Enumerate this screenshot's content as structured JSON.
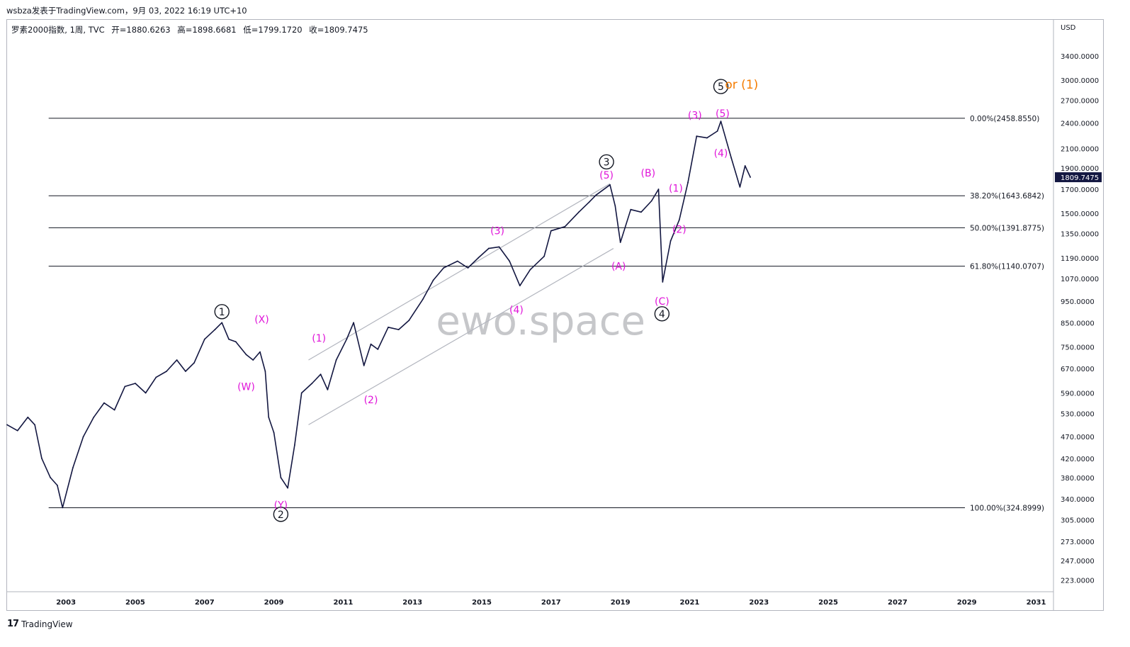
{
  "caption": "wsbza发表于TradingView.com，9月 03, 2022 16:19 UTC+10",
  "legend": {
    "symbol": "罗素2000指数, 1周, TVC",
    "open": "开=1880.6263",
    "high": "高=1898.6681",
    "low": "低=1799.1720",
    "close": "收=1809.7475"
  },
  "watermark": "ewo.space",
  "footer": "TradingView",
  "colors": {
    "price": "#131741",
    "magenta": "#e014d9",
    "orange": "#f57c00",
    "fib": "#131722",
    "channel": "#b2b5be"
  },
  "chart_data": {
    "type": "line",
    "currency": "USD",
    "y_scale": "log",
    "ylim": [
      210,
      4100
    ],
    "xlim": [
      2001.3,
      2031.5
    ],
    "x_ticks": [
      "2003",
      "2005",
      "2007",
      "2009",
      "2011",
      "2013",
      "2015",
      "2017",
      "2019",
      "2021",
      "2023",
      "2025",
      "2027",
      "2029",
      "2031"
    ],
    "y_ticks": [
      "3400.0000",
      "3000.0000",
      "2700.0000",
      "2400.0000",
      "2100.0000",
      "1900.0000",
      "1700.0000",
      "1500.0000",
      "1350.0000",
      "1190.0000",
      "1070.0000",
      "950.0000",
      "850.0000",
      "750.0000",
      "670.0000",
      "590.0000",
      "530.0000",
      "470.0000",
      "420.0000",
      "380.0000",
      "340.0000",
      "305.0000",
      "273.0000",
      "247.0000",
      "223.0000"
    ],
    "last_price_label": "1809.7475",
    "series": [
      {
        "x": [
          2001.3,
          2001.6,
          2001.9,
          2002.1,
          2002.3,
          2002.55,
          2002.75,
          2002.9,
          2003.2,
          2003.5,
          2003.8,
          2004.1,
          2004.4,
          2004.7,
          2005.0,
          2005.3,
          2005.6,
          2005.9,
          2006.2,
          2006.45,
          2006.7,
          2007.0,
          2007.3,
          2007.5,
          2007.7,
          2007.9,
          2008.2,
          2008.4,
          2008.6,
          2008.75,
          2008.85,
          2009.0,
          2009.2,
          2009.4,
          2009.6,
          2009.8,
          2010.1,
          2010.35,
          2010.55,
          2010.8,
          2011.1,
          2011.3,
          2011.6,
          2011.8,
          2012.0,
          2012.3,
          2012.6,
          2012.9,
          2013.3,
          2013.6,
          2013.9,
          2014.3,
          2014.6,
          2014.9,
          2015.2,
          2015.5,
          2015.8,
          2016.1,
          2016.4,
          2016.8,
          2017.0,
          2017.4,
          2017.8,
          2018.1,
          2018.3,
          2018.7,
          2018.85,
          2019.0,
          2019.3,
          2019.6,
          2019.9,
          2020.1,
          2020.22,
          2020.45,
          2020.7,
          2020.95,
          2021.2,
          2021.5,
          2021.8,
          2021.9,
          2022.2,
          2022.45,
          2022.6,
          2022.75
        ],
        "y": [
          500,
          485,
          520,
          500,
          420,
          380,
          365,
          325,
          400,
          470,
          520,
          560,
          540,
          610,
          620,
          590,
          640,
          660,
          700,
          660,
          690,
          780,
          820,
          850,
          780,
          770,
          720,
          700,
          730,
          660,
          520,
          480,
          380,
          360,
          450,
          590,
          620,
          650,
          600,
          700,
          780,
          850,
          680,
          760,
          740,
          830,
          820,
          860,
          960,
          1060,
          1130,
          1170,
          1130,
          1190,
          1250,
          1260,
          1170,
          1030,
          1120,
          1200,
          1370,
          1400,
          1510,
          1590,
          1650,
          1740,
          1560,
          1290,
          1530,
          1510,
          1600,
          1700,
          1050,
          1300,
          1450,
          1760,
          2240,
          2220,
          2300,
          2420,
          2000,
          1720,
          1920,
          1810
        ]
      }
    ],
    "fib_levels": [
      {
        "label": "0.00%(2458.8550)",
        "value": 2458.855
      },
      {
        "label": "38.20%(1643.6842)",
        "value": 1643.6842
      },
      {
        "label": "50.00%(1391.8775)",
        "value": 1391.8775
      },
      {
        "label": "61.80%(1140.0707)",
        "value": 1140.0707
      },
      {
        "label": "100.00%(324.8999)",
        "value": 324.8999
      }
    ],
    "channel": [
      {
        "x1": 2010.0,
        "y1": 700,
        "x2": 2018.7,
        "y2": 1750
      },
      {
        "x1": 2010.0,
        "y1": 500,
        "x2": 2018.8,
        "y2": 1250
      }
    ],
    "wave_labels": [
      {
        "text": "1",
        "circled": true,
        "color": "black",
        "x": 2007.5,
        "y": 900
      },
      {
        "text": "2",
        "circled": true,
        "color": "black",
        "x": 2009.2,
        "y": 314
      },
      {
        "text": "3",
        "circled": true,
        "color": "black",
        "x": 2018.6,
        "y": 1960
      },
      {
        "text": "4",
        "circled": true,
        "color": "black",
        "x": 2020.2,
        "y": 890
      },
      {
        "text": "5",
        "circled": true,
        "color": "black",
        "x": 2021.9,
        "y": 2900
      },
      {
        "text": "or (1)",
        "circled": false,
        "color": "orange",
        "x": 2022.5,
        "y": 2920
      },
      {
        "text": "(X)",
        "circled": false,
        "color": "magenta",
        "x": 2008.65,
        "y": 865
      },
      {
        "text": "(W)",
        "circled": false,
        "color": "magenta",
        "x": 2008.2,
        "y": 610
      },
      {
        "text": "(Y)",
        "circled": false,
        "color": "magenta",
        "x": 2009.2,
        "y": 330
      },
      {
        "text": "(1)",
        "circled": false,
        "color": "magenta",
        "x": 2010.3,
        "y": 785
      },
      {
        "text": "(2)",
        "circled": false,
        "color": "magenta",
        "x": 2011.8,
        "y": 570
      },
      {
        "text": "(3)",
        "circled": false,
        "color": "magenta",
        "x": 2015.45,
        "y": 1370
      },
      {
        "text": "(4)",
        "circled": false,
        "color": "magenta",
        "x": 2016.0,
        "y": 910
      },
      {
        "text": "(5)",
        "circled": false,
        "color": "magenta",
        "x": 2018.6,
        "y": 1830
      },
      {
        "text": "(A)",
        "circled": false,
        "color": "magenta",
        "x": 2018.95,
        "y": 1140
      },
      {
        "text": "(B)",
        "circled": false,
        "color": "magenta",
        "x": 2019.8,
        "y": 1850
      },
      {
        "text": "(C)",
        "circled": false,
        "color": "magenta",
        "x": 2020.2,
        "y": 950
      },
      {
        "text": "(1)",
        "circled": false,
        "color": "magenta",
        "x": 2020.6,
        "y": 1710
      },
      {
        "text": "(2)",
        "circled": false,
        "color": "magenta",
        "x": 2020.7,
        "y": 1380
      },
      {
        "text": "(3)",
        "circled": false,
        "color": "magenta",
        "x": 2021.15,
        "y": 2500
      },
      {
        "text": "(4)",
        "circled": false,
        "color": "magenta",
        "x": 2021.9,
        "y": 2050
      },
      {
        "text": "(5)",
        "circled": false,
        "color": "magenta",
        "x": 2021.95,
        "y": 2520
      }
    ]
  }
}
